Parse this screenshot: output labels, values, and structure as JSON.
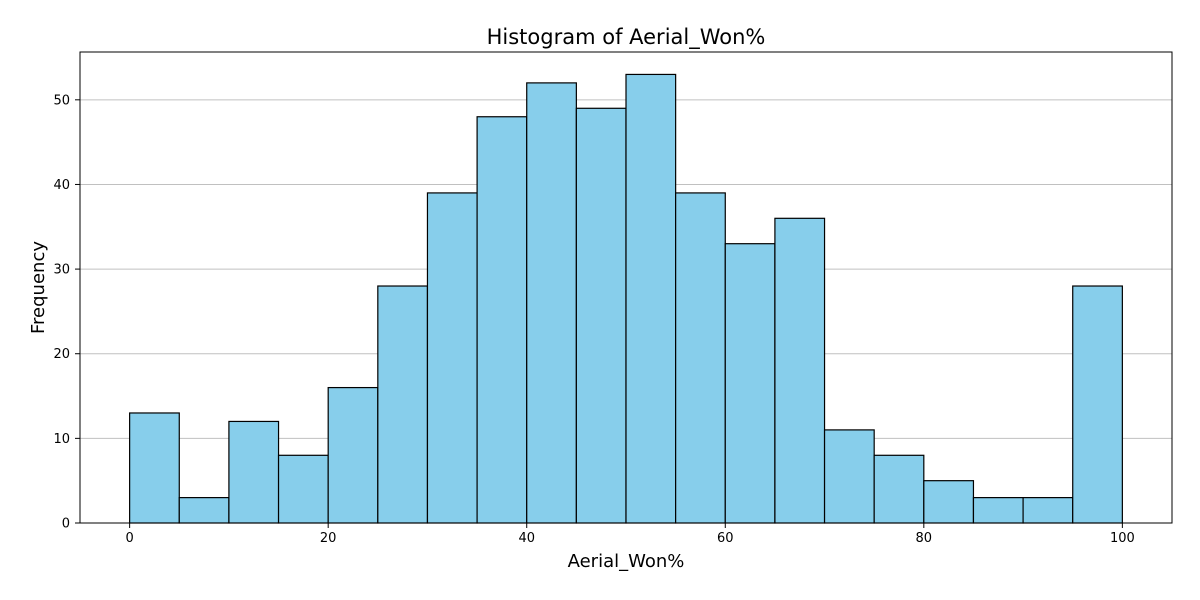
{
  "chart_data": {
    "type": "bar",
    "title": "Histogram of Aerial_Won%",
    "xlabel": "Aerial_Won%",
    "ylabel": "Frequency",
    "bin_edges": [
      0,
      5,
      10,
      15,
      20,
      25,
      30,
      35,
      40,
      45,
      50,
      55,
      60,
      65,
      70,
      75,
      80,
      85,
      90,
      95,
      100
    ],
    "values": [
      13,
      3,
      12,
      8,
      16,
      28,
      39,
      48,
      52,
      49,
      53,
      39,
      33,
      36,
      11,
      8,
      5,
      3,
      3,
      28
    ],
    "xlim": [
      -5,
      105
    ],
    "ylim": [
      0,
      55.65
    ],
    "xticks": [
      0,
      20,
      40,
      60,
      80,
      100
    ],
    "yticks": [
      0,
      10,
      20,
      30,
      40,
      50
    ],
    "grid": "y-axis only",
    "bar_color": "#87CEEB",
    "edge_color": "#000000",
    "grid_color": "#c0c0c0"
  }
}
